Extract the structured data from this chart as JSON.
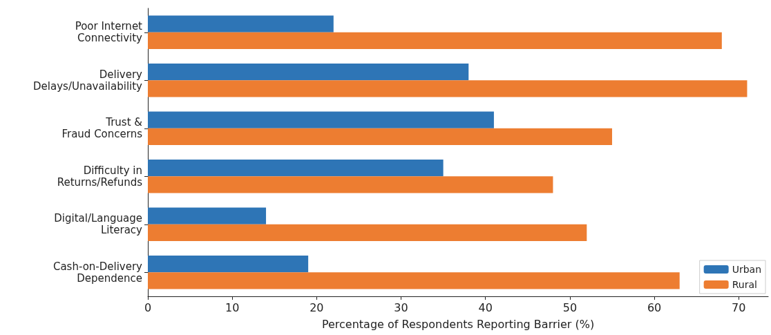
{
  "chart_data": {
    "type": "bar",
    "orientation": "horizontal",
    "categories": [
      "Poor Internet\nConnectivity",
      "Delivery\nDelays/Unavailability",
      "Trust &\nFraud Concerns",
      "Difficulty in\nReturns/Refunds",
      "Digital/Language\nLiteracy",
      "Cash-on-Delivery\nDependence"
    ],
    "series": [
      {
        "name": "Urban",
        "color": "#2e75b6",
        "values": [
          22,
          38,
          41,
          35,
          14,
          19
        ]
      },
      {
        "name": "Rural",
        "color": "#ed7d31",
        "values": [
          68,
          71,
          55,
          48,
          52,
          63
        ]
      }
    ],
    "xlabel": "Percentage of Respondents Reporting Barrier (%)",
    "xlim": [
      0,
      73.5
    ],
    "xticks": [
      0,
      10,
      20,
      30,
      40,
      50,
      60,
      70
    ],
    "grid": false,
    "legend": "bottom right"
  }
}
